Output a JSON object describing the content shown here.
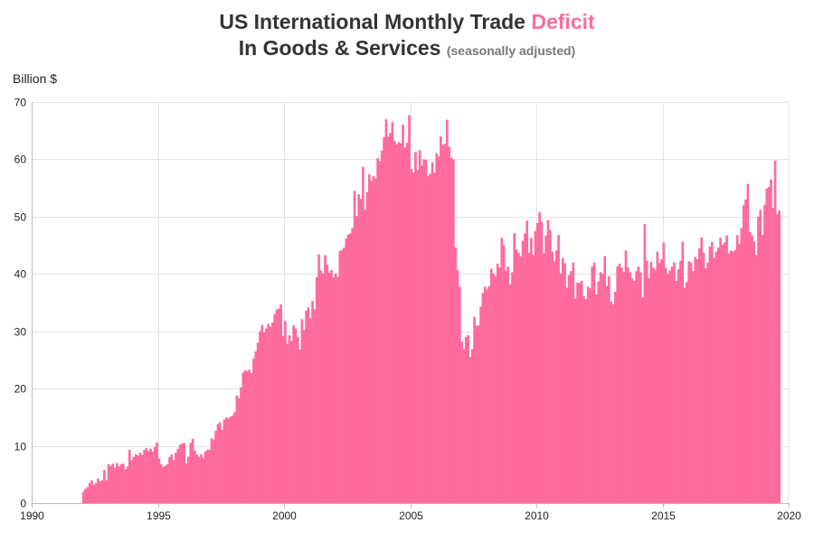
{
  "title": {
    "line1_prefix": "US International Monthly Trade ",
    "line1_highlight": "Deficit",
    "line2_main": "In Goods & Services",
    "line2_sub": "(seasonally adjusted)"
  },
  "colors": {
    "bar": "#ff6b9e",
    "highlight": "#ff6b9e",
    "grid": "#e3e3e3"
  },
  "chart_data": {
    "type": "bar",
    "title": "US International Monthly Trade Deficit In Goods & Services (seasonally adjusted)",
    "ylabel": "Billion $",
    "xlabel": "",
    "xlim": [
      1990,
      2020
    ],
    "ylim": [
      0,
      70
    ],
    "x_ticks": [
      1990,
      1995,
      2000,
      2005,
      2010,
      2015,
      2020
    ],
    "y_ticks": [
      0,
      10,
      20,
      30,
      40,
      50,
      60,
      70
    ],
    "grid": true,
    "start": "1992-01",
    "frequency": "monthly",
    "values": [
      2.0,
      2.5,
      2.8,
      3.5,
      4.0,
      3.2,
      3.5,
      4.3,
      3.8,
      4.0,
      5.8,
      4.0,
      6.8,
      6.5,
      6.9,
      6.2,
      7.0,
      6.4,
      6.8,
      6.9,
      5.9,
      6.4,
      9.3,
      7.5,
      8.1,
      8.5,
      8.3,
      8.8,
      8.4,
      9.3,
      9.6,
      9.1,
      9.5,
      9.0,
      9.8,
      10.6,
      7.8,
      6.8,
      6.3,
      6.5,
      6.8,
      8.0,
      8.5,
      7.5,
      8.8,
      9.5,
      10.2,
      10.4,
      10.5,
      7.0,
      8.1,
      10.5,
      11.2,
      9.2,
      8.5,
      8.1,
      8.5,
      7.9,
      9.0,
      9.3,
      9.3,
      11.3,
      11.1,
      12.6,
      13.8,
      14.1,
      12.8,
      14.6,
      15.0,
      14.8,
      15.1,
      15.3,
      15.9,
      18.8,
      18.3,
      20.2,
      22.8,
      23.2,
      23.0,
      23.3,
      22.7,
      25.2,
      26.5,
      28.0,
      30.0,
      31.1,
      29.8,
      30.5,
      31.3,
      30.8,
      31.5,
      33.0,
      33.8,
      34.0,
      34.7,
      29.2,
      31.8,
      27.8,
      29.3,
      28.3,
      31.0,
      30.5,
      29.0,
      26.8,
      32.1,
      30.2,
      33.6,
      34.2,
      32.3,
      35.3,
      33.8,
      39.4,
      43.4,
      40.6,
      40.1,
      43.3,
      41.6,
      40.2,
      40.7,
      39.4,
      40.1,
      39.5,
      44.0,
      44.2,
      44.6,
      46.2,
      46.9,
      47.1,
      48.0,
      54.5,
      50.1,
      53.9,
      53.1,
      58.7,
      51.2,
      54.3,
      57.4,
      56.3,
      57.1,
      56.7,
      60.2,
      59.7,
      61.5,
      63.9,
      67.0,
      64.0,
      64.6,
      66.5,
      63.2,
      62.6,
      63.0,
      62.8,
      66.1,
      62.1,
      62.9,
      67.7,
      58.3,
      57.7,
      61.3,
      58.2,
      61.6,
      58.9,
      60.0,
      59.9,
      57.1,
      57.5,
      59.5,
      57.7,
      61.1,
      60.5,
      64.0,
      62.5,
      62.7,
      66.9,
      62.2,
      60.3,
      60.0,
      44.6,
      40.7,
      37.8,
      28.2,
      26.9,
      29.0,
      29.3,
      25.5,
      26.9,
      32.5,
      30.9,
      31.1,
      34.3,
      36.7,
      37.8,
      37.3,
      37.9,
      40.9,
      40.1,
      39.6,
      41.8,
      41.1,
      46.3,
      45.0,
      40.6,
      41.3,
      38.2,
      40.3,
      47.1,
      44.3,
      43.7,
      43.1,
      45.8,
      47.1,
      49.3,
      43.7,
      46.3,
      43.3,
      47.5,
      48.9,
      50.8,
      49.1,
      43.6,
      46.7,
      49.4,
      47.7,
      43.9,
      42.2,
      44.1,
      46.8,
      40.1,
      42.8,
      41.9,
      37.6,
      39.8,
      40.5,
      42.0,
      35.7,
      38.5,
      38.4,
      38.8,
      36.1,
      35.6,
      37.8,
      37.5,
      41.3,
      42.0,
      36.4,
      38.7,
      40.3,
      40.0,
      43.1,
      37.9,
      39.6,
      35.2,
      34.7,
      36.9,
      41.3,
      41.8,
      41.1,
      40.3,
      44.1,
      41.2,
      40.3,
      39.2,
      38.8,
      40.5,
      41.3,
      40.3,
      35.9,
      48.7,
      42.3,
      39.3,
      42.1,
      41.1,
      40.8,
      43.9,
      41.9,
      42.6,
      45.5,
      41.1,
      40.0,
      40.6,
      41.3,
      42.0,
      38.8,
      40.8,
      42.3,
      45.6,
      37.6,
      38.6,
      42.2,
      42.0,
      40.5,
      43.0,
      42.6,
      44.5,
      46.4,
      43.7,
      41.0,
      42.0,
      44.8,
      45.6,
      42.8,
      43.9,
      44.6,
      46.3,
      45.1,
      45.5,
      46.7,
      43.6,
      44.1,
      43.9,
      44.2,
      46.8,
      45.2,
      48.0,
      52.0,
      53.0,
      55.7,
      47.3,
      46.8,
      45.7,
      43.3,
      50.0,
      51.2,
      46.8,
      52.1,
      54.9,
      55.2,
      56.5,
      51.5,
      59.8,
      50.4,
      51.1
    ]
  }
}
